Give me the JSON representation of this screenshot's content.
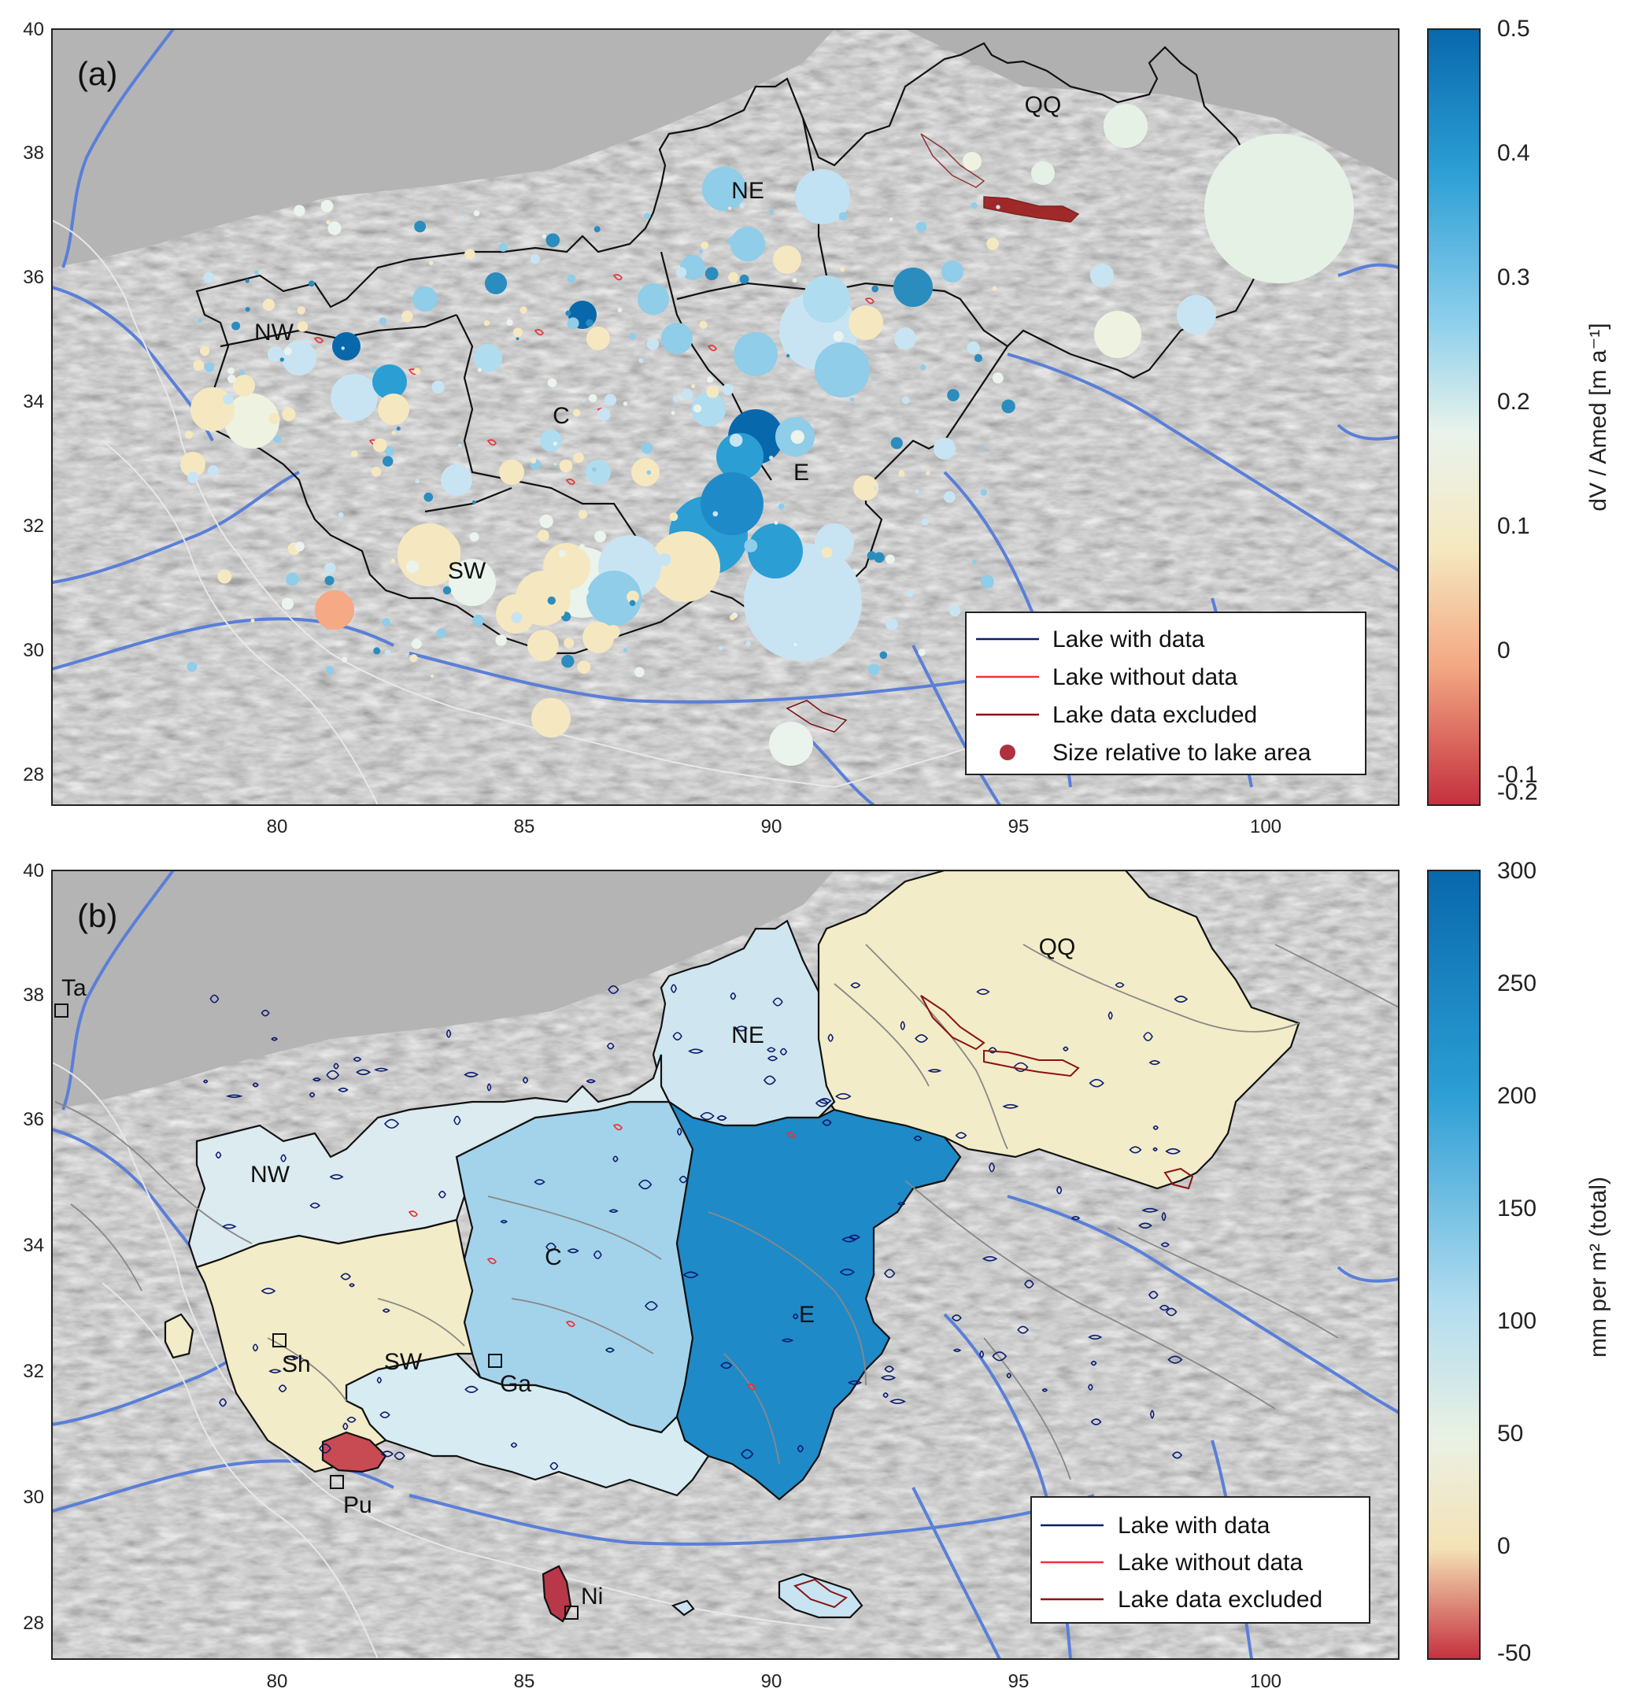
{
  "colors": {
    "blue_dark": "#0868ac",
    "blue_mid": "#2b8cbe",
    "blue_light": "#6cbfe4",
    "blue_pale": "#c8e4f2",
    "cream": "#f2ecc8",
    "salmon": "#f5a984",
    "red": "#c13b44",
    "river": "#5a7fd8",
    "lake_with_data": "#0b1c6e",
    "lake_without_data": "#e8343a",
    "lake_excluded": "#8b1212",
    "hillshade": "#a9a9a9"
  },
  "panel_a": {
    "label": "(a)",
    "legend": {
      "items": [
        {
          "label": "Lake with data",
          "kind": "line",
          "color": "#0b1c6e"
        },
        {
          "label": "Lake without data",
          "kind": "line",
          "color": "#e8343a"
        },
        {
          "label": "Lake data excluded",
          "kind": "line",
          "color": "#8b1212"
        },
        {
          "label": "Size relative to lake area",
          "kind": "dot",
          "color": "#b03040"
        }
      ]
    },
    "colorbar": {
      "label": "dV / Amed  [m a⁻¹]",
      "ticks": [
        "0.5",
        "0.4",
        "0.3",
        "0.2",
        "0.1",
        "0",
        "-0.1",
        "-0.2"
      ]
    },
    "region_labels": [
      "QQ",
      "NE",
      "NW",
      "C",
      "E",
      "SW"
    ],
    "x_ticks": [
      "80",
      "85",
      "90",
      "95",
      "100"
    ],
    "y_ticks": [
      "40",
      "38",
      "36",
      "34",
      "32",
      "30",
      "28"
    ]
  },
  "panel_b": {
    "label": "(b)",
    "legend": {
      "items": [
        {
          "label": "Lake with data",
          "kind": "line",
          "color": "#0b1c6e"
        },
        {
          "label": "Lake without data",
          "kind": "line",
          "color": "#e8343a"
        },
        {
          "label": "Lake data excluded",
          "kind": "line",
          "color": "#8b1212"
        }
      ]
    },
    "colorbar": {
      "label": "mm per m² (total)",
      "ticks": [
        "300",
        "250",
        "200",
        "150",
        "100",
        "50",
        "0",
        "-50"
      ]
    },
    "region_labels": [
      "QQ",
      "NE",
      "NW",
      "C",
      "E",
      "SW"
    ],
    "station_labels": [
      "Ta",
      "Sh",
      "Ga",
      "Pu",
      "Ni"
    ],
    "x_ticks": [
      "80",
      "85",
      "90",
      "95",
      "100"
    ],
    "y_ticks": [
      "40",
      "38",
      "36",
      "34",
      "32",
      "30",
      "28"
    ]
  }
}
